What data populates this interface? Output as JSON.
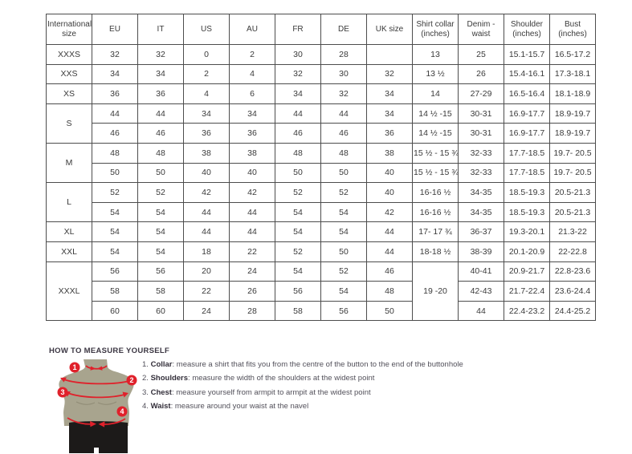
{
  "size_table": {
    "headers": [
      {
        "label": "International size"
      },
      {
        "label": "EU"
      },
      {
        "label": "IT"
      },
      {
        "label": "US"
      },
      {
        "label": "AU"
      },
      {
        "label": "FR"
      },
      {
        "label": "DE"
      },
      {
        "label": "UK size"
      },
      {
        "label": "Shirt collar (inches)"
      },
      {
        "label": "Denim - waist"
      },
      {
        "label": "Shoulder (inches)"
      },
      {
        "label": "Bust (inches)"
      }
    ],
    "rows": [
      {
        "cells": [
          {
            "t": "XXXS"
          },
          {
            "t": "32"
          },
          {
            "t": "32"
          },
          {
            "t": "0"
          },
          {
            "t": "2"
          },
          {
            "t": "30"
          },
          {
            "t": "28"
          },
          {
            "t": ""
          },
          {
            "t": "13"
          },
          {
            "t": "25"
          },
          {
            "t": "15.1-15.7"
          },
          {
            "t": "16.5-17.2"
          }
        ]
      },
      {
        "cells": [
          {
            "t": "XXS"
          },
          {
            "t": "34"
          },
          {
            "t": "34"
          },
          {
            "t": "2"
          },
          {
            "t": "4"
          },
          {
            "t": "32"
          },
          {
            "t": "30"
          },
          {
            "t": "32"
          },
          {
            "t": "13 ½"
          },
          {
            "t": "26"
          },
          {
            "t": "15.4-16.1"
          },
          {
            "t": "17.3-18.1"
          }
        ]
      },
      {
        "cells": [
          {
            "t": "XS"
          },
          {
            "t": "36"
          },
          {
            "t": "36"
          },
          {
            "t": "4"
          },
          {
            "t": "6"
          },
          {
            "t": "34"
          },
          {
            "t": "32"
          },
          {
            "t": "34"
          },
          {
            "t": "14"
          },
          {
            "t": "27-29"
          },
          {
            "t": "16.5-16.4"
          },
          {
            "t": "18.1-18.9"
          }
        ]
      },
      {
        "cells": [
          {
            "t": "S",
            "rs": 2
          },
          {
            "t": "44"
          },
          {
            "t": "44"
          },
          {
            "t": "34"
          },
          {
            "t": "34"
          },
          {
            "t": "44"
          },
          {
            "t": "44"
          },
          {
            "t": "34"
          },
          {
            "t": "14 ½ -15"
          },
          {
            "t": "30-31"
          },
          {
            "t": "16.9-17.7"
          },
          {
            "t": "18.9-19.7"
          }
        ]
      },
      {
        "cells": [
          {
            "t": "46"
          },
          {
            "t": "46"
          },
          {
            "t": "36"
          },
          {
            "t": "36"
          },
          {
            "t": "46"
          },
          {
            "t": "46"
          },
          {
            "t": "36"
          },
          {
            "t": "14 ½ -15"
          },
          {
            "t": "30-31"
          },
          {
            "t": "16.9-17.7"
          },
          {
            "t": "18.9-19.7"
          }
        ]
      },
      {
        "cells": [
          {
            "t": "M",
            "rs": 2
          },
          {
            "t": "48"
          },
          {
            "t": "48"
          },
          {
            "t": "38"
          },
          {
            "t": "38"
          },
          {
            "t": "48"
          },
          {
            "t": "48"
          },
          {
            "t": "38"
          },
          {
            "t": "15 ½ - 15 ¾"
          },
          {
            "t": "32-33"
          },
          {
            "t": "17.7-18.5"
          },
          {
            "t": "19.7- 20.5"
          }
        ]
      },
      {
        "cells": [
          {
            "t": "50"
          },
          {
            "t": "50"
          },
          {
            "t": "40"
          },
          {
            "t": "40"
          },
          {
            "t": "50"
          },
          {
            "t": "50"
          },
          {
            "t": "40"
          },
          {
            "t": "15 ½ - 15 ¾"
          },
          {
            "t": "32-33"
          },
          {
            "t": "17.7-18.5"
          },
          {
            "t": "19.7- 20.5"
          }
        ]
      },
      {
        "cells": [
          {
            "t": "L",
            "rs": 2
          },
          {
            "t": "52"
          },
          {
            "t": "52"
          },
          {
            "t": "42"
          },
          {
            "t": "42"
          },
          {
            "t": "52"
          },
          {
            "t": "52"
          },
          {
            "t": "40"
          },
          {
            "t": "16-16 ½"
          },
          {
            "t": "34-35"
          },
          {
            "t": "18.5-19.3"
          },
          {
            "t": "20.5-21.3"
          }
        ]
      },
      {
        "cells": [
          {
            "t": "54"
          },
          {
            "t": "54"
          },
          {
            "t": "44"
          },
          {
            "t": "44"
          },
          {
            "t": "54"
          },
          {
            "t": "54"
          },
          {
            "t": "42"
          },
          {
            "t": "16-16 ½"
          },
          {
            "t": "34-35"
          },
          {
            "t": "18.5-19.3"
          },
          {
            "t": "20.5-21.3"
          }
        ]
      },
      {
        "cells": [
          {
            "t": "XL"
          },
          {
            "t": "54"
          },
          {
            "t": "54"
          },
          {
            "t": "44"
          },
          {
            "t": "44"
          },
          {
            "t": "54"
          },
          {
            "t": "54"
          },
          {
            "t": "44"
          },
          {
            "t": "17- 17 ¾"
          },
          {
            "t": "36-37"
          },
          {
            "t": "19.3-20.1"
          },
          {
            "t": "21.3-22"
          }
        ]
      },
      {
        "cells": [
          {
            "t": "XXL"
          },
          {
            "t": "54"
          },
          {
            "t": "54"
          },
          {
            "t": "18"
          },
          {
            "t": "22"
          },
          {
            "t": "52"
          },
          {
            "t": "50"
          },
          {
            "t": "44"
          },
          {
            "t": "18-18 ½"
          },
          {
            "t": "38-39"
          },
          {
            "t": "20.1-20.9"
          },
          {
            "t": "22-22.8"
          }
        ]
      },
      {
        "cells": [
          {
            "t": "XXXL",
            "rs": 3
          },
          {
            "t": "56"
          },
          {
            "t": "56"
          },
          {
            "t": "20"
          },
          {
            "t": "24"
          },
          {
            "t": "54"
          },
          {
            "t": "52"
          },
          {
            "t": "46"
          },
          {
            "t": "19 -20",
            "rs": 3
          },
          {
            "t": "40-41"
          },
          {
            "t": "20.9-21.7"
          },
          {
            "t": "22.8-23.6"
          }
        ]
      },
      {
        "cells": [
          {
            "t": "58"
          },
          {
            "t": "58"
          },
          {
            "t": "22"
          },
          {
            "t": "26"
          },
          {
            "t": "56"
          },
          {
            "t": "54"
          },
          {
            "t": "48"
          },
          {
            "t": "42-43"
          },
          {
            "t": "21.7-22.4"
          },
          {
            "t": "23.6-24.4"
          }
        ]
      },
      {
        "cells": [
          {
            "t": "60"
          },
          {
            "t": "60"
          },
          {
            "t": "24"
          },
          {
            "t": "28"
          },
          {
            "t": "58"
          },
          {
            "t": "56"
          },
          {
            "t": "50"
          },
          {
            "t": "44"
          },
          {
            "t": "22.4-23.2"
          },
          {
            "t": "24.4-25.2"
          }
        ]
      }
    ]
  },
  "measure_guide": {
    "title": "HOW TO MEASURE YOURSELF",
    "separator": ": ",
    "steps": [
      {
        "num": "1.",
        "label": "Collar",
        "text": "measure a shirt that fits you from the centre of the button to the end of the buttonhole"
      },
      {
        "num": "2.",
        "label": "Shoulders",
        "text": "measure the width of the shoulders at the widest point"
      },
      {
        "num": "3.",
        "label": "Chest",
        "text": "measure yourself from armpit to armpit at the widest point"
      },
      {
        "num": "4.",
        "label": "Waist",
        "text": "measure around your waist at the navel"
      }
    ],
    "figure_markers": [
      "1",
      "2",
      "3",
      "4"
    ]
  },
  "colors": {
    "accent_red": "#e0212b",
    "mannequin_body": "#a8a48e",
    "mannequin_shorts": "#1c1a19",
    "table_border": "#4d4d4d",
    "table_text": "#3a3a3a"
  }
}
